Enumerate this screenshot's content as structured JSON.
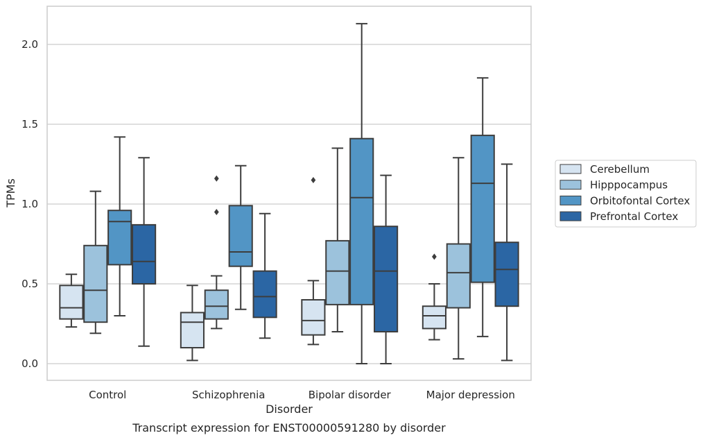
{
  "chart_data": {
    "type": "box",
    "caption": "Transcript expression for ENST00000591280 by disorder",
    "xlabel": "Disorder",
    "ylabel": "TPMs",
    "ylim": [
      -0.1,
      2.25
    ],
    "yticks": [
      0.0,
      0.5,
      1.0,
      1.5,
      2.0
    ],
    "ytick_labels": [
      "0.0",
      "0.5",
      "1.0",
      "1.5",
      "2.0"
    ],
    "grid": "horizontal",
    "legend_position": "right",
    "categories": [
      "Control",
      "Schizophrenia",
      "Bipolar disorder",
      "Major depression"
    ],
    "series": [
      {
        "name": "Cerebellum",
        "color": "#d6e4f1",
        "boxes": [
          {
            "whisker_low": 0.23,
            "q1": 0.28,
            "median": 0.35,
            "q3": 0.49,
            "whisker_high": 0.56,
            "outliers": []
          },
          {
            "whisker_low": 0.02,
            "q1": 0.1,
            "median": 0.26,
            "q3": 0.32,
            "whisker_high": 0.49,
            "outliers": []
          },
          {
            "whisker_low": 0.12,
            "q1": 0.18,
            "median": 0.27,
            "q3": 0.4,
            "whisker_high": 0.52,
            "outliers": [
              1.15
            ]
          },
          {
            "whisker_low": 0.15,
            "q1": 0.22,
            "median": 0.3,
            "q3": 0.36,
            "whisker_high": 0.5,
            "outliers": [
              0.67
            ]
          }
        ]
      },
      {
        "name": "Hipppocampus",
        "color": "#9cc2dc",
        "boxes": [
          {
            "whisker_low": 0.19,
            "q1": 0.26,
            "median": 0.46,
            "q3": 0.74,
            "whisker_high": 1.08,
            "outliers": []
          },
          {
            "whisker_low": 0.22,
            "q1": 0.28,
            "median": 0.36,
            "q3": 0.46,
            "whisker_high": 0.55,
            "outliers": [
              0.95,
              1.16
            ]
          },
          {
            "whisker_low": 0.2,
            "q1": 0.37,
            "median": 0.58,
            "q3": 0.77,
            "whisker_high": 1.35,
            "outliers": []
          },
          {
            "whisker_low": 0.03,
            "q1": 0.35,
            "median": 0.57,
            "q3": 0.75,
            "whisker_high": 1.29,
            "outliers": []
          }
        ]
      },
      {
        "name": "Orbitofontal Cortex",
        "color": "#5295c5",
        "boxes": [
          {
            "whisker_low": 0.3,
            "q1": 0.62,
            "median": 0.89,
            "q3": 0.96,
            "whisker_high": 1.42,
            "outliers": []
          },
          {
            "whisker_low": 0.34,
            "q1": 0.61,
            "median": 0.7,
            "q3": 0.99,
            "whisker_high": 1.24,
            "outliers": []
          },
          {
            "whisker_low": 0.0,
            "q1": 0.37,
            "median": 1.04,
            "q3": 1.41,
            "whisker_high": 2.13,
            "outliers": []
          },
          {
            "whisker_low": 0.17,
            "q1": 0.51,
            "median": 1.13,
            "q3": 1.43,
            "whisker_high": 1.79,
            "outliers": []
          }
        ]
      },
      {
        "name": "Prefrontal Cortex",
        "color": "#2b66a4",
        "boxes": [
          {
            "whisker_low": 0.11,
            "q1": 0.5,
            "median": 0.64,
            "q3": 0.87,
            "whisker_high": 1.29,
            "outliers": []
          },
          {
            "whisker_low": 0.16,
            "q1": 0.29,
            "median": 0.42,
            "q3": 0.58,
            "whisker_high": 0.94,
            "outliers": []
          },
          {
            "whisker_low": 0.0,
            "q1": 0.2,
            "median": 0.58,
            "q3": 0.86,
            "whisker_high": 1.18,
            "outliers": []
          },
          {
            "whisker_low": 0.02,
            "q1": 0.36,
            "median": 0.59,
            "q3": 0.76,
            "whisker_high": 1.25,
            "outliers": []
          }
        ]
      }
    ]
  }
}
